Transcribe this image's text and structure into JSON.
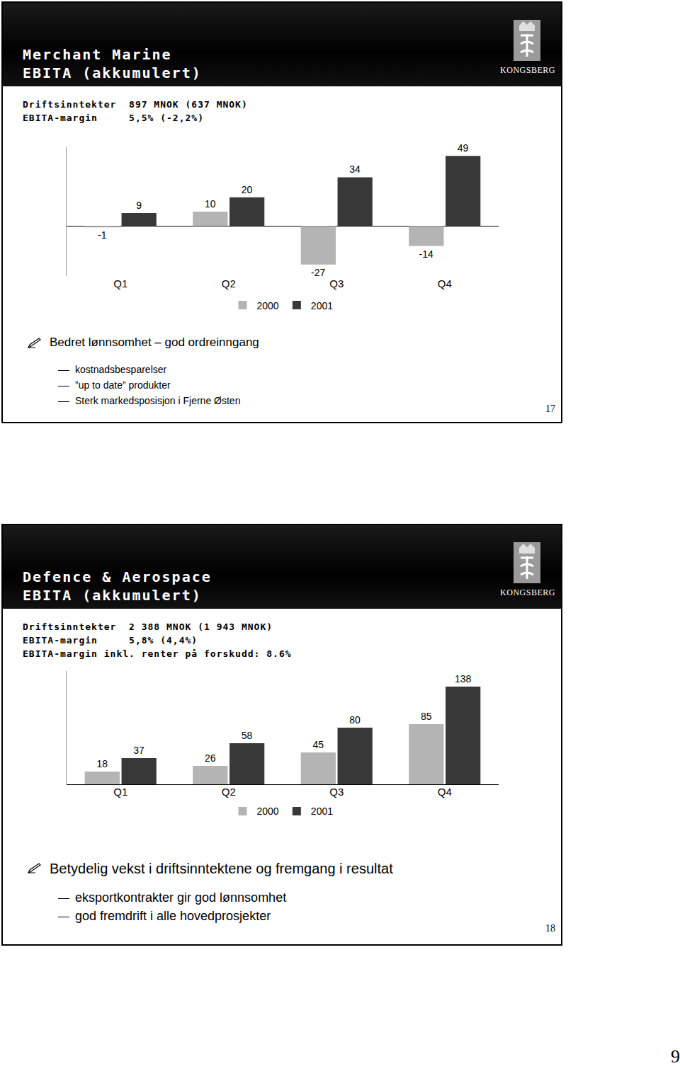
{
  "page_number": 9,
  "slides": [
    {
      "title_lines": [
        "Merchant Marine",
        "EBITA (akkumulert)"
      ],
      "logo_text": "KONGSBERG",
      "info_lines": [
        "Driftsinntekter  897 MNOK (637 MNOK)",
        "EBITA-margin     5,5% (-2,2%)"
      ],
      "bullet": "Bedret lønnsomhet – god ordreinngang",
      "sub_bullets": [
        "kostnadsbesparelser",
        "”up to date” produkter",
        "Sterk markedsposisjon i Fjerne Østen"
      ],
      "slide_number": 17
    },
    {
      "title_lines": [
        "Defence & Aerospace",
        "EBITA (akkumulert)"
      ],
      "logo_text": "KONGSBERG",
      "info_lines": [
        "Driftsinntekter  2 388 MNOK (1 943 MNOK)",
        "EBITA-margin     5,8% (4,4%)",
        "EBITA-margin inkl. renter på forskudd: 8.6%"
      ],
      "bullet": "Betydelig vekst i driftsinntektene og fremgang i resultat",
      "sub_bullets": [
        "eksportkontrakter gir god lønnsomhet",
        "god fremdrift i alle hovedprosjekter"
      ],
      "slide_number": 18
    }
  ],
  "chart_data": [
    {
      "type": "bar",
      "categories": [
        "Q1",
        "Q2",
        "Q3",
        "Q4"
      ],
      "series": [
        {
          "name": "2000",
          "color": "#b4b4b4",
          "values": [
            -1,
            10,
            -27,
            -14
          ]
        },
        {
          "name": "2001",
          "color": "#383838",
          "values": [
            9,
            20,
            34,
            49
          ]
        }
      ],
      "ylim": [
        -35,
        55
      ],
      "grid": false,
      "legend": "bottom",
      "data_labels": true,
      "tick_labels": "x"
    },
    {
      "type": "bar",
      "categories": [
        "Q1",
        "Q2",
        "Q3",
        "Q4"
      ],
      "series": [
        {
          "name": "2000",
          "color": "#b4b4b4",
          "values": [
            18,
            26,
            45,
            85
          ]
        },
        {
          "name": "2001",
          "color": "#383838",
          "values": [
            37,
            58,
            80,
            138
          ]
        }
      ],
      "ylim": [
        0,
        160
      ],
      "grid": false,
      "legend": "bottom",
      "data_labels": true,
      "tick_labels": "x"
    }
  ]
}
